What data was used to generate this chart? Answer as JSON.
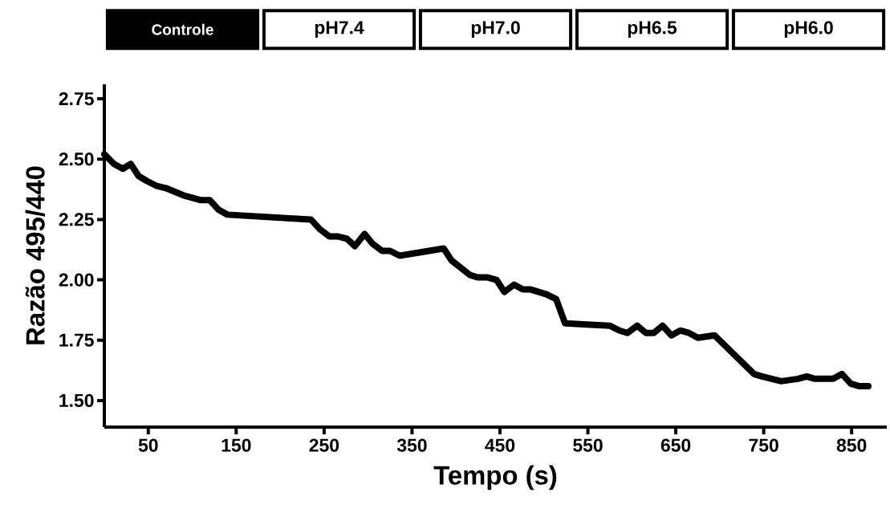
{
  "chart_data": {
    "type": "line",
    "xlabel": "Tempo (s)",
    "ylabel": "Razão 495/440",
    "x": [
      0,
      11,
      21,
      30,
      39,
      48,
      59,
      70,
      90,
      110,
      120,
      130,
      140,
      235,
      245,
      256,
      265,
      276,
      285,
      296,
      305,
      316,
      325,
      336,
      386,
      395,
      416,
      425,
      436,
      446,
      455,
      466,
      476,
      485,
      503,
      514,
      524,
      575,
      586,
      595,
      606,
      616,
      625,
      635,
      645,
      655,
      665,
      675,
      694,
      739,
      748,
      759,
      770,
      789,
      799,
      808,
      829,
      839,
      849,
      858,
      869
    ],
    "series": [
      {
        "color": "#000000",
        "values": [
          2.52,
          2.48,
          2.46,
          2.48,
          2.43,
          2.41,
          2.39,
          2.38,
          2.35,
          2.33,
          2.33,
          2.29,
          2.27,
          2.25,
          2.21,
          2.18,
          2.18,
          2.17,
          2.14,
          2.19,
          2.15,
          2.12,
          2.12,
          2.1,
          2.13,
          2.08,
          2.02,
          2.01,
          2.01,
          2.0,
          1.95,
          1.98,
          1.96,
          1.96,
          1.94,
          1.92,
          1.82,
          1.81,
          1.79,
          1.78,
          1.81,
          1.78,
          1.78,
          1.81,
          1.77,
          1.79,
          1.78,
          1.76,
          1.77,
          1.61,
          1.6,
          1.59,
          1.58,
          1.59,
          1.6,
          1.59,
          1.59,
          1.61,
          1.57,
          1.56,
          1.56
        ]
      }
    ],
    "xlim": [
      0,
      890
    ],
    "ylim": [
      1.39,
      2.81
    ],
    "xticks": [
      50,
      150,
      250,
      350,
      450,
      550,
      650,
      750,
      850
    ],
    "yticks": [
      {
        "value": 1.5,
        "label": "1.50"
      },
      {
        "value": 1.75,
        "label": "1.75"
      },
      {
        "value": 2.0,
        "label": "2.00"
      },
      {
        "value": 2.25,
        "label": "2.25"
      },
      {
        "value": 2.5,
        "label": "2.50"
      },
      {
        "value": 2.75,
        "label": "2.75"
      }
    ],
    "marker": "none",
    "line_style": "solid",
    "annotations": [
      "Controle",
      "pH7.4",
      "pH7.0",
      "pH6.5",
      "pH6.0"
    ]
  }
}
